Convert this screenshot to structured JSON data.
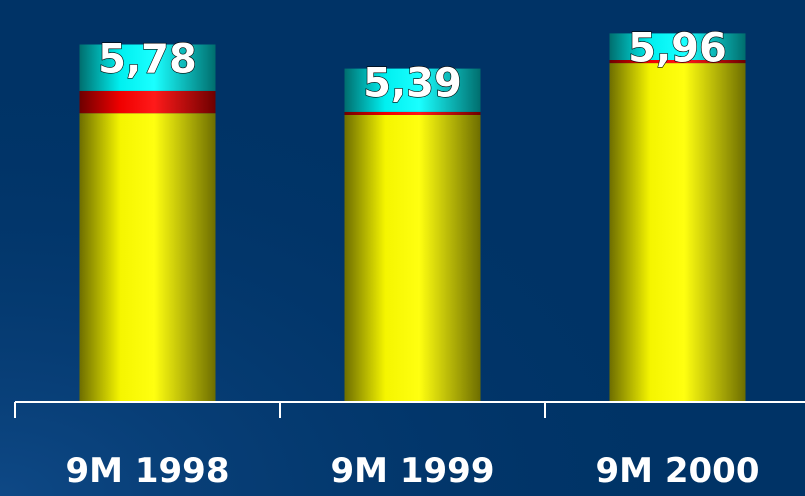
{
  "chart_data": {
    "type": "bar",
    "stacked": true,
    "categories": [
      "9M 1998",
      "9M 1999",
      "9M 2000"
    ],
    "data_labels": [
      "5,78",
      "5,39",
      "5,96"
    ],
    "totals": [
      5.78,
      5.39,
      5.96
    ],
    "series": [
      {
        "values": [
          4.67,
          4.64,
          5.48
        ],
        "color": "#e8e800"
      },
      {
        "values": [
          0.36,
          0.05,
          0.05
        ],
        "color": "#e60000"
      },
      {
        "values": [
          0.75,
          0.7,
          0.43
        ],
        "color": "#00e6e6"
      }
    ],
    "ylim": [
      0,
      6.5
    ],
    "grid": false,
    "legend": "none"
  },
  "colors": {
    "background": "#003366",
    "axis": "#ffffff"
  }
}
